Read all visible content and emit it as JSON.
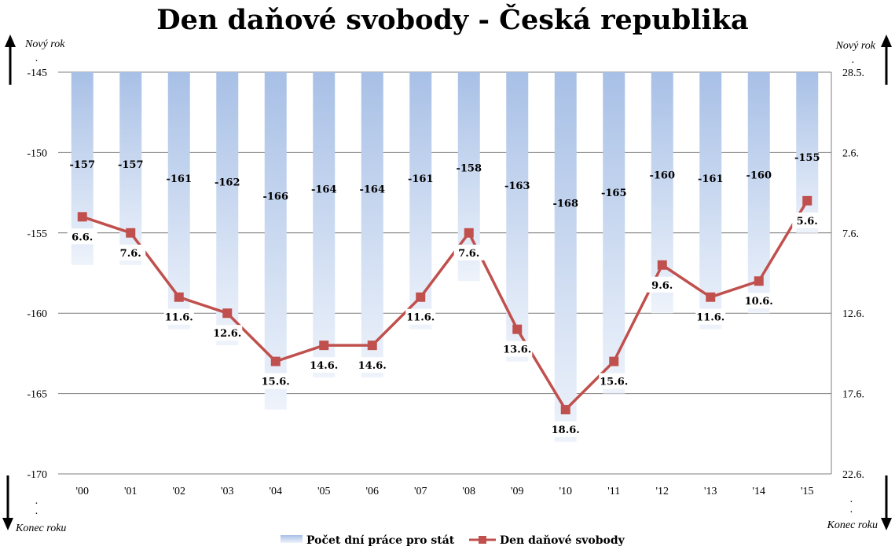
{
  "chart_data": {
    "type": "bar+line",
    "title": "Den daňové svobody - Česká republika",
    "categories": [
      "'00",
      "'01",
      "'02",
      "'03",
      "'04",
      "'05",
      "'06",
      "'07",
      "'08",
      "'09",
      "'10",
      "'11",
      "'12",
      "'13",
      "'14",
      "'15"
    ],
    "ylim": [
      -170,
      -145
    ],
    "y_ticks": [
      -145,
      -150,
      -155,
      -160,
      -165,
      -170
    ],
    "y2_ticks": [
      "28.5.",
      "2.6.",
      "7.6.",
      "12.6.",
      "17.6.",
      "22.6."
    ],
    "corner_labels": {
      "left_top": "Nový rok",
      "left_bottom": "Konec roku",
      "right_top": "Nový rok",
      "right_bottom": "Konec roku"
    },
    "series": [
      {
        "name": "Počet dní práce pro stát",
        "kind": "bar",
        "values": [
          -157,
          -157,
          -161,
          -162,
          -166,
          -164,
          -164,
          -161,
          -158,
          -163,
          -168,
          -165,
          -160,
          -161,
          -160,
          -155
        ]
      },
      {
        "name": "Den daňové svobody",
        "kind": "line",
        "color": "#c0504d",
        "values": [
          -154,
          -155,
          -159,
          -160,
          -163,
          -162,
          -162,
          -159,
          -155,
          -161,
          -166,
          -163,
          -157,
          -159,
          -158,
          -153
        ],
        "labels": [
          "6.6.",
          "7.6.",
          "11.6.",
          "12.6.",
          "15.6.",
          "14.6.",
          "14.6.",
          "11.6.",
          "7.6.",
          "13.6.",
          "18.6.",
          "15.6.",
          "9.6.",
          "11.6.",
          "10.6.",
          "5.6."
        ]
      }
    ],
    "grid": true,
    "legend": "bottom"
  },
  "colors": {
    "bar_top": "#a8c0e6",
    "bar_bottom": "#eef3fb",
    "line": "#c0504d",
    "grid": "#7f7f7f"
  }
}
